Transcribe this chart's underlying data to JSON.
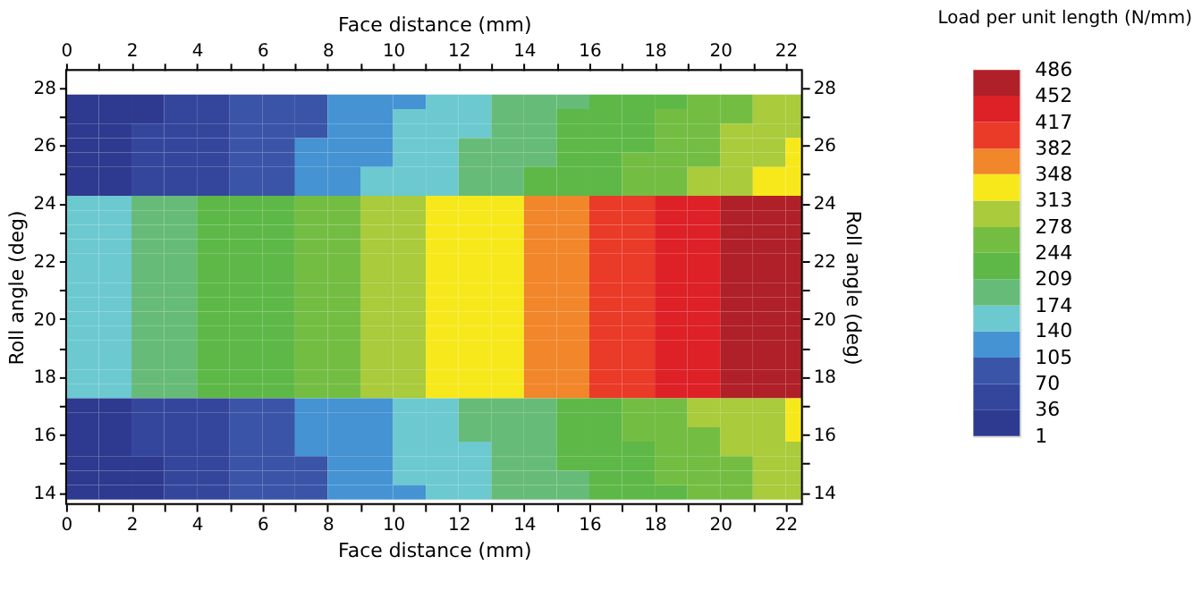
{
  "chart_data": {
    "type": "heatmap",
    "xlabel": "Face distance (mm)",
    "x2label": "Face distance (mm)",
    "ylabel": "Roll angle (deg)",
    "y2label": "Roll angle (deg)",
    "clabel": "Load per unit length (N/mm)",
    "x": [
      0.5,
      1.5,
      2.5,
      3.5,
      4.5,
      5.5,
      6.5,
      7.5,
      8.5,
      9.5,
      10.5,
      11.5,
      12.5,
      13.5,
      14.5,
      15.5,
      16.5,
      17.5,
      18.5,
      19.5,
      20.5,
      21.5,
      22.25
    ],
    "y": [
      27.5,
      27.0,
      26.5,
      26.0,
      25.5,
      25.0,
      24.5,
      24.0,
      23.5,
      23.0,
      22.5,
      22.0,
      21.5,
      21.0,
      20.5,
      20.0,
      19.5,
      19.0,
      18.5,
      18.0,
      17.5,
      17.0,
      16.5,
      16.0,
      15.5,
      15.0,
      14.5,
      14.0
    ],
    "cells": [
      [
        18,
        18,
        18,
        53,
        53,
        88,
        88,
        88,
        122,
        122,
        122,
        157,
        157,
        192,
        192,
        192,
        226,
        226,
        226,
        261,
        261,
        296,
        296
      ],
      [
        18,
        18,
        18,
        53,
        53,
        88,
        88,
        88,
        122,
        122,
        157,
        157,
        157,
        192,
        192,
        226,
        226,
        226,
        261,
        261,
        261,
        296,
        296
      ],
      [
        18,
        18,
        53,
        53,
        53,
        88,
        88,
        88,
        122,
        122,
        157,
        157,
        157,
        192,
        192,
        226,
        226,
        226,
        261,
        261,
        296,
        296,
        296
      ],
      [
        18,
        18,
        53,
        53,
        53,
        88,
        88,
        122,
        122,
        122,
        157,
        157,
        192,
        192,
        192,
        226,
        226,
        226,
        261,
        261,
        296,
        296,
        330
      ],
      [
        18,
        18,
        53,
        53,
        53,
        88,
        88,
        122,
        122,
        122,
        157,
        157,
        192,
        192,
        192,
        226,
        226,
        261,
        261,
        261,
        296,
        296,
        330
      ],
      [
        18,
        18,
        53,
        53,
        53,
        88,
        88,
        122,
        122,
        157,
        157,
        157,
        192,
        192,
        226,
        226,
        226,
        261,
        261,
        296,
        296,
        330,
        330
      ],
      [
        18,
        18,
        53,
        53,
        53,
        88,
        88,
        122,
        122,
        157,
        157,
        157,
        192,
        192,
        226,
        226,
        226,
        261,
        261,
        296,
        296,
        330,
        330
      ],
      [
        157,
        157,
        192,
        192,
        226,
        226,
        226,
        261,
        261,
        296,
        296,
        330,
        330,
        330,
        365,
        365,
        400,
        400,
        434,
        434,
        469,
        469,
        469
      ],
      [
        157,
        157,
        192,
        192,
        226,
        226,
        226,
        261,
        261,
        296,
        296,
        330,
        330,
        330,
        365,
        365,
        400,
        400,
        434,
        434,
        469,
        469,
        469
      ],
      [
        157,
        157,
        192,
        192,
        226,
        226,
        226,
        261,
        261,
        296,
        296,
        330,
        330,
        330,
        365,
        365,
        400,
        400,
        434,
        434,
        469,
        469,
        469
      ],
      [
        157,
        157,
        192,
        192,
        226,
        226,
        226,
        261,
        261,
        296,
        296,
        330,
        330,
        330,
        365,
        365,
        400,
        400,
        434,
        434,
        469,
        469,
        469
      ],
      [
        157,
        157,
        192,
        192,
        226,
        226,
        226,
        261,
        261,
        296,
        296,
        330,
        330,
        330,
        365,
        365,
        400,
        400,
        434,
        434,
        469,
        469,
        469
      ],
      [
        157,
        157,
        192,
        192,
        226,
        226,
        226,
        261,
        261,
        296,
        296,
        330,
        330,
        330,
        365,
        365,
        400,
        400,
        434,
        434,
        469,
        469,
        469
      ],
      [
        157,
        157,
        192,
        192,
        226,
        226,
        226,
        261,
        261,
        296,
        296,
        330,
        330,
        330,
        365,
        365,
        400,
        400,
        434,
        434,
        469,
        469,
        469
      ],
      [
        157,
        157,
        192,
        192,
        226,
        226,
        226,
        261,
        261,
        296,
        296,
        330,
        330,
        330,
        365,
        365,
        400,
        400,
        434,
        434,
        469,
        469,
        469
      ],
      [
        157,
        157,
        192,
        192,
        226,
        226,
        226,
        261,
        261,
        296,
        296,
        330,
        330,
        330,
        365,
        365,
        400,
        400,
        434,
        434,
        469,
        469,
        469
      ],
      [
        157,
        157,
        192,
        192,
        226,
        226,
        226,
        261,
        261,
        296,
        296,
        330,
        330,
        330,
        365,
        365,
        400,
        400,
        434,
        434,
        469,
        469,
        469
      ],
      [
        157,
        157,
        192,
        192,
        226,
        226,
        226,
        261,
        261,
        296,
        296,
        330,
        330,
        330,
        365,
        365,
        400,
        400,
        434,
        434,
        469,
        469,
        469
      ],
      [
        157,
        157,
        192,
        192,
        226,
        226,
        226,
        261,
        261,
        296,
        296,
        330,
        330,
        330,
        365,
        365,
        400,
        400,
        434,
        434,
        469,
        469,
        469
      ],
      [
        157,
        157,
        192,
        192,
        226,
        226,
        226,
        261,
        261,
        296,
        296,
        330,
        330,
        330,
        365,
        365,
        400,
        400,
        434,
        434,
        469,
        469,
        469
      ],
      [
        157,
        157,
        192,
        192,
        226,
        226,
        226,
        261,
        261,
        296,
        296,
        330,
        330,
        330,
        365,
        365,
        400,
        400,
        434,
        434,
        469,
        469,
        469
      ],
      [
        18,
        18,
        53,
        53,
        53,
        88,
        88,
        122,
        122,
        122,
        157,
        157,
        192,
        192,
        192,
        226,
        226,
        261,
        261,
        296,
        296,
        296,
        330
      ],
      [
        18,
        18,
        53,
        53,
        53,
        88,
        88,
        122,
        122,
        122,
        157,
        157,
        192,
        192,
        192,
        226,
        226,
        261,
        261,
        296,
        296,
        296,
        330
      ],
      [
        18,
        18,
        53,
        53,
        53,
        88,
        88,
        122,
        122,
        122,
        157,
        157,
        192,
        192,
        192,
        226,
        226,
        261,
        261,
        261,
        296,
        296,
        330
      ],
      [
        18,
        18,
        53,
        53,
        53,
        88,
        88,
        122,
        122,
        122,
        157,
        157,
        157,
        192,
        192,
        226,
        226,
        226,
        261,
        261,
        296,
        296,
        296
      ],
      [
        18,
        18,
        18,
        53,
        53,
        88,
        88,
        88,
        122,
        122,
        157,
        157,
        157,
        192,
        192,
        226,
        226,
        226,
        261,
        261,
        261,
        296,
        296
      ],
      [
        18,
        18,
        18,
        53,
        53,
        88,
        88,
        88,
        122,
        122,
        157,
        157,
        157,
        192,
        192,
        192,
        226,
        226,
        261,
        261,
        261,
        296,
        296
      ],
      [
        18,
        18,
        18,
        53,
        53,
        88,
        88,
        88,
        122,
        122,
        122,
        157,
        157,
        192,
        192,
        192,
        226,
        226,
        226,
        261,
        261,
        296,
        296
      ]
    ],
    "colors": [
      "#2e3a8f",
      "#34469c",
      "#3a55a8",
      "#4593d3",
      "#6cc9d0",
      "#67bb78",
      "#5eb847",
      "#74bd43",
      "#a9cb3c",
      "#f7e81c",
      "#f1862a",
      "#ea3a28",
      "#dd2127",
      "#b02028"
    ],
    "clim": [
      1,
      486
    ],
    "cticks": [
      1,
      36,
      70,
      105,
      140,
      174,
      209,
      244,
      278,
      313,
      348,
      382,
      417,
      452,
      486
    ],
    "xlim": [
      0,
      22.5
    ],
    "ylim": [
      13.6,
      28.6
    ],
    "x2lim": [
      0,
      22.5
    ],
    "y2lim": [
      13.6,
      28.6
    ],
    "xticks": [
      0,
      {
        "value": 1,
        "label": null
      },
      2,
      {
        "value": 3,
        "label": null
      },
      4,
      {
        "value": 5,
        "label": null
      },
      6,
      {
        "value": 7,
        "label": null
      },
      8,
      {
        "value": 9,
        "label": null
      },
      10,
      {
        "value": 11,
        "label": null
      },
      12,
      {
        "value": 13,
        "label": null
      },
      14,
      {
        "value": 15,
        "label": null
      },
      16,
      {
        "value": 17,
        "label": null
      },
      18,
      {
        "value": 19,
        "label": null
      },
      20,
      {
        "value": 21,
        "label": null
      },
      22
    ],
    "x2ticks": [
      0,
      {
        "value": 1,
        "label": null
      },
      2,
      {
        "value": 3,
        "label": null
      },
      4,
      {
        "value": 5,
        "label": null
      },
      6,
      {
        "value": 7,
        "label": null
      },
      8,
      {
        "value": 9,
        "label": null
      },
      10,
      {
        "value": 11,
        "label": null
      },
      12,
      {
        "value": 13,
        "label": null
      },
      14,
      {
        "value": 15,
        "label": null
      },
      16,
      {
        "value": 17,
        "label": null
      },
      18,
      {
        "value": 19,
        "label": null
      },
      20,
      {
        "value": 21,
        "label": null
      },
      22
    ],
    "yticks": [
      14,
      {
        "value": 15,
        "label": null
      },
      16,
      {
        "value": 17,
        "label": null
      },
      18,
      {
        "value": 19,
        "label": null
      },
      20,
      {
        "value": 21,
        "label": null
      },
      22,
      {
        "value": 23,
        "label": null
      },
      24,
      {
        "value": 25,
        "label": null
      },
      26,
      {
        "value": 27,
        "label": null
      },
      28
    ],
    "y2ticks": [
      14,
      {
        "value": 15,
        "label": null
      },
      16,
      {
        "value": 17,
        "label": null
      },
      18,
      {
        "value": 19,
        "label": null
      },
      20,
      {
        "value": 21,
        "label": null
      },
      22,
      {
        "value": 23,
        "label": null
      },
      24,
      {
        "value": 25,
        "label": null
      },
      26,
      {
        "value": 27,
        "label": null
      },
      28
    ],
    "grid": false
  }
}
